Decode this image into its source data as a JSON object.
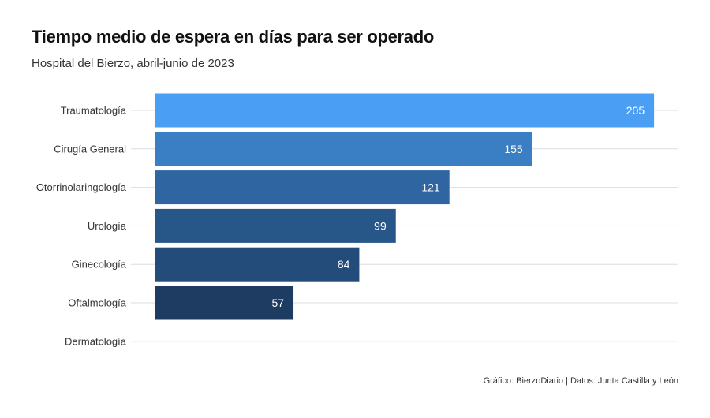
{
  "chart_data": {
    "type": "bar",
    "orientation": "horizontal",
    "title": "Tiempo medio de espera en días para ser operado",
    "subtitle": "Hospital del Bierzo, abril-junio de 2023",
    "categories": [
      "Traumatología",
      "Cirugía General",
      "Otorrinolaringología",
      "Urología",
      "Ginecología",
      "Oftalmología",
      "Dermatología"
    ],
    "values": [
      205,
      155,
      121,
      99,
      84,
      57,
      null
    ],
    "xlim": [
      0,
      215
    ],
    "grid": true,
    "legend": "none",
    "colors": [
      "#4a9ff5",
      "#3a7ec3",
      "#2f66a1",
      "#275789",
      "#234c7a",
      "#1e3b61",
      "#1e3b61"
    ]
  },
  "source": "Gráfico: BierzoDiario | Datos: Junta Castilla y León"
}
